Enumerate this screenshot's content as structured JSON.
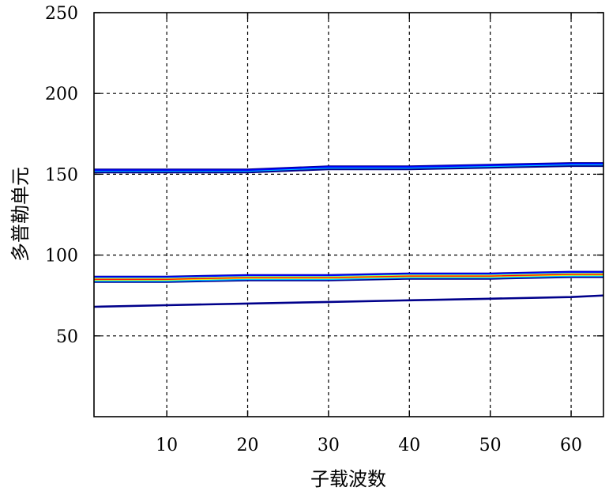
{
  "chart_data": {
    "type": "heatmap",
    "xlabel": "子载波数",
    "ylabel": "多普勒单元",
    "xlim": [
      1,
      64
    ],
    "ylim": [
      0,
      250
    ],
    "xticks": [
      10,
      20,
      30,
      40,
      50,
      60
    ],
    "yticks": [
      50,
      100,
      150,
      200,
      250
    ],
    "grid": true,
    "colormap": [
      "#00008b",
      "#0000ff",
      "#00bfff",
      "#7fff7f",
      "#ffff00",
      "#ff7f00",
      "#ff0000",
      "#8b0000"
    ],
    "ridges": [
      {
        "x": [
          1,
          10,
          20,
          30,
          40,
          50,
          60,
          64
        ],
        "y": [
          152,
          152,
          152,
          154,
          154,
          155,
          156,
          156
        ],
        "intensity": "low"
      },
      {
        "x": [
          1,
          10,
          20,
          30,
          40,
          50,
          60,
          64
        ],
        "y": [
          85,
          85,
          86,
          86,
          87,
          87,
          88,
          88
        ],
        "intensity": "high"
      },
      {
        "x": [
          1,
          10,
          20,
          30,
          40,
          50,
          60,
          64
        ],
        "y": [
          68,
          69,
          70,
          71,
          72,
          73,
          74,
          75
        ],
        "intensity": "lowest"
      }
    ]
  }
}
